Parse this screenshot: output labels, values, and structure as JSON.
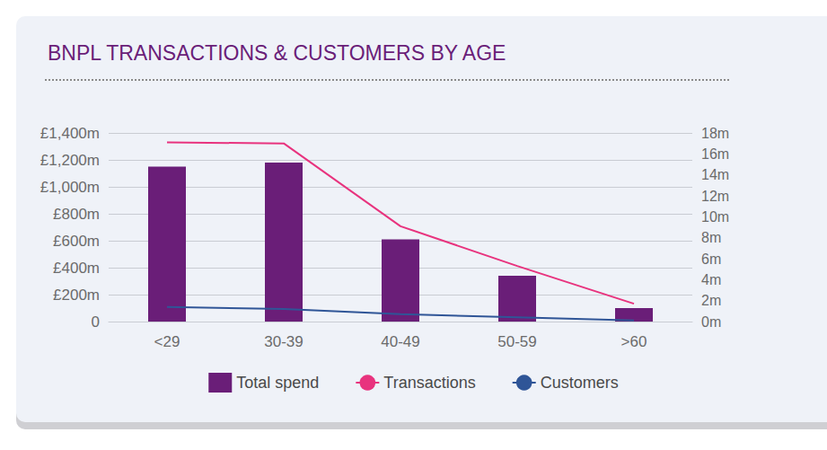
{
  "chart_data": {
    "type": "bar",
    "title": "BNPL TRANSACTIONS & CUSTOMERS BY AGE",
    "categories": [
      "<29",
      "30-39",
      "40-49",
      "50-59",
      ">60"
    ],
    "series": [
      {
        "name": "Total spend",
        "type": "bar",
        "color": "#6a1e78",
        "values": [
          1150,
          1180,
          610,
          340,
          100
        ]
      },
      {
        "name": "Transactions",
        "type": "line",
        "axis": "y2",
        "color": "#e8337e",
        "values": [
          17.1,
          17.0,
          9.1,
          5.3,
          1.7
        ]
      },
      {
        "name": "Customers",
        "type": "line",
        "axis": "y2",
        "color": "#2f5597",
        "values": [
          1.4,
          1.2,
          0.7,
          0.4,
          0.1
        ]
      }
    ],
    "ylim": [
      0,
      1400
    ],
    "yticks": [
      0,
      {
        "value": 200,
        "label": "£200m"
      },
      {
        "value": 400,
        "label": "£400m"
      },
      {
        "value": 600,
        "label": "£600m"
      },
      {
        "value": 800,
        "label": "£800m"
      },
      {
        "value": 1000,
        "label": "£1,000m"
      },
      {
        "value": 1200,
        "label": "£1,200m"
      },
      {
        "value": 1400,
        "label": "£1,400m"
      }
    ],
    "y2lim": [
      0,
      18
    ],
    "y2ticks": [
      {
        "value": 0,
        "label": "0m"
      },
      {
        "value": 2,
        "label": "2m"
      },
      {
        "value": 4,
        "label": "4m"
      },
      {
        "value": 6,
        "label": "6m"
      },
      {
        "value": 8,
        "label": "8m"
      },
      {
        "value": 10,
        "label": "10m"
      },
      {
        "value": 12,
        "label": "12m"
      },
      {
        "value": 14,
        "label": "14m"
      },
      {
        "value": 16,
        "label": "16m"
      },
      {
        "value": 18,
        "label": "18m"
      }
    ],
    "grid": true,
    "legend": "bottom"
  }
}
